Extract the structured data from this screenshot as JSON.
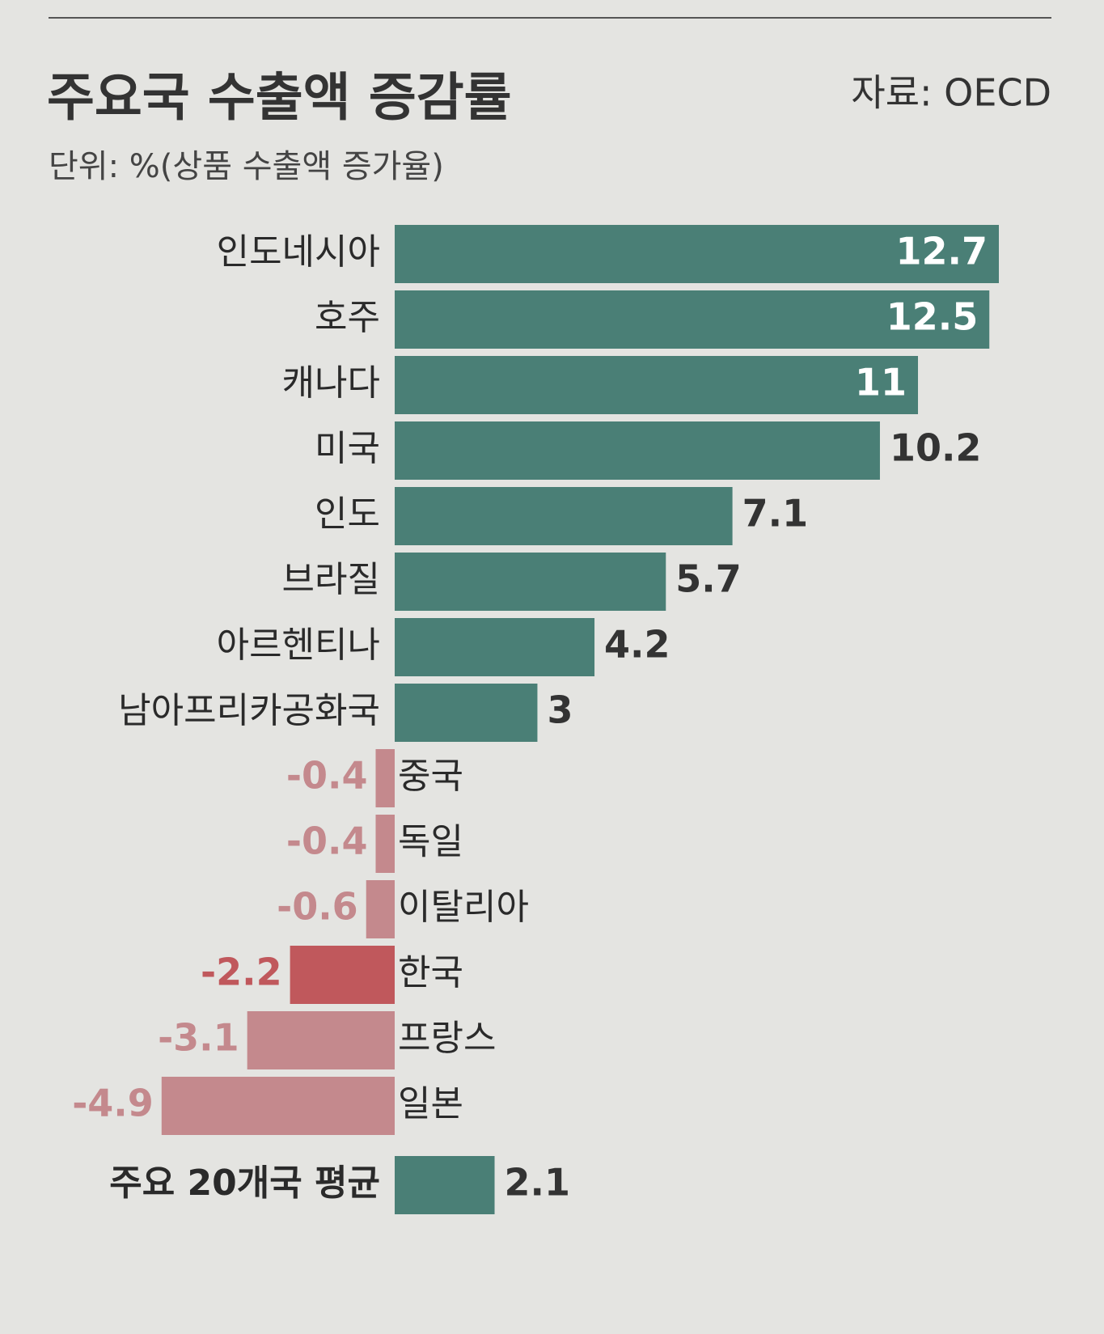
{
  "chart_data": {
    "type": "hbar",
    "title": "주요국 수출액 증감률",
    "subtitle": "단위: %(상품 수출액 증가율)",
    "source": "자료: OECD",
    "categories": [
      "인도네시아",
      "호주",
      "캐나다",
      "미국",
      "인도",
      "브라질",
      "아르헨티나",
      "남아프리카공화국",
      "중국",
      "독일",
      "이탈리아",
      "한국",
      "프랑스",
      "일본"
    ],
    "values": [
      12.7,
      12.5,
      11,
      10.2,
      7.1,
      5.7,
      4.2,
      3,
      -0.4,
      -0.4,
      -0.6,
      -2.2,
      -3.1,
      -4.9
    ],
    "colors": [
      "#4a7f76",
      "#4a7f76",
      "#4a7f76",
      "#4a7f76",
      "#4a7f76",
      "#4a7f76",
      "#4a7f76",
      "#4a7f76",
      "#c4898d",
      "#c4898d",
      "#c4898d",
      "#c0585c",
      "#c4898d",
      "#c4898d"
    ],
    "average": {
      "label": "주요 20개국 평균",
      "value": 2.1,
      "color": "#4a7f76"
    }
  }
}
